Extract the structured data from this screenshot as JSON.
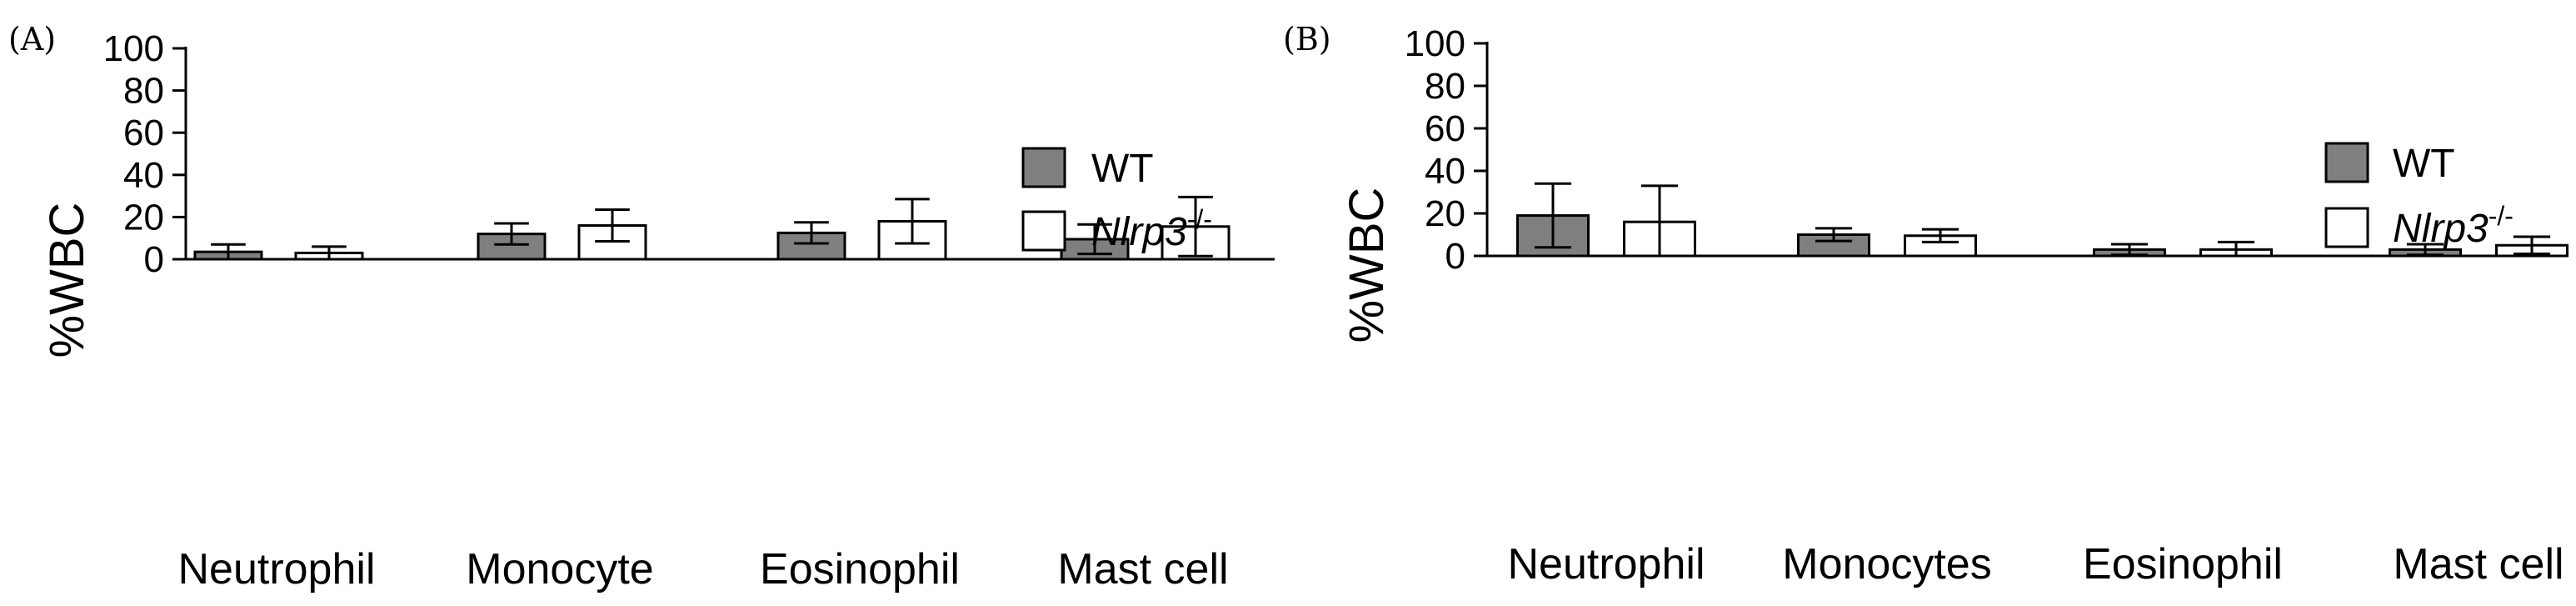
{
  "colors": {
    "wt_fill": "#7f7f7f",
    "ko_fill": "#ffffff",
    "stroke": "#000000"
  },
  "chart_data": [
    {
      "type": "bar",
      "panel_label": "(A)",
      "title": "",
      "xlabel": "",
      "ylabel": "%WBC",
      "ylim": [
        0,
        100
      ],
      "yticks": [
        "0",
        "20",
        "40",
        "60",
        "80",
        "100"
      ],
      "categories": [
        "Neutrophil",
        "Monocyte",
        "Eosinophil",
        "Mast cell"
      ],
      "legend_position": "top-right",
      "series": [
        {
          "name": "WT",
          "values": [
            3.5,
            12,
            12.5,
            9.5
          ],
          "error": [
            3.5,
            5,
            5,
            7
          ]
        },
        {
          "name": "Nlrp3",
          "superscript": "-/-",
          "values": [
            3,
            16,
            18,
            15.5
          ],
          "error": [
            3,
            7.5,
            10.5,
            14
          ]
        }
      ]
    },
    {
      "type": "bar",
      "panel_label": "(B)",
      "title": "",
      "xlabel": "",
      "ylabel": "%WBC",
      "ylim": [
        0,
        100
      ],
      "yticks": [
        "0",
        "20",
        "40",
        "60",
        "80",
        "100"
      ],
      "categories": [
        "Neutrophil",
        "Monocytes",
        "Eosinophil",
        "Mast cell"
      ],
      "legend_position": "top-right",
      "series": [
        {
          "name": "WT",
          "values": [
            19,
            10,
            3,
            3
          ],
          "error": [
            15,
            3,
            2.5,
            2.5
          ]
        },
        {
          "name": "Nlrp3",
          "superscript": "-/-",
          "values": [
            16,
            9.5,
            3,
            5
          ],
          "error": [
            17,
            3,
            3.5,
            4
          ]
        }
      ]
    }
  ]
}
